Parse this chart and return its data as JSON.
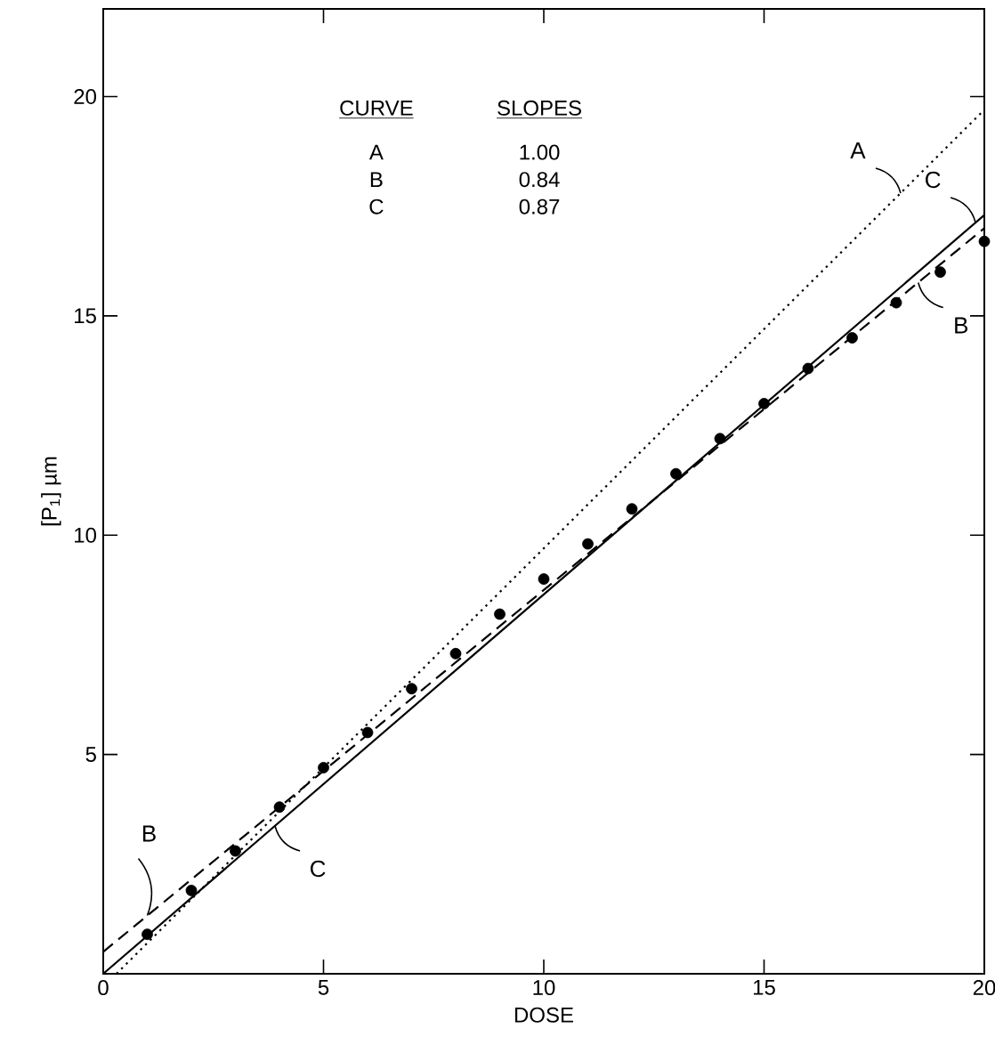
{
  "chart_data": {
    "type": "scatter",
    "xlabel": "DOSE",
    "ylabel": "[P$_{1}$] µm",
    "xlim": [
      0,
      20
    ],
    "ylim": [
      0,
      22
    ],
    "xticks": [
      0,
      5,
      10,
      15,
      20
    ],
    "yticks": [
      5,
      10,
      15,
      20
    ],
    "grid": false,
    "series": [
      {
        "color": "#000000",
        "marker": "circle",
        "x": [
          1,
          2,
          3,
          4,
          5,
          6,
          7,
          8,
          9,
          10,
          11,
          12,
          13,
          14,
          15,
          16,
          17,
          18,
          19,
          20
        ],
        "values": [
          0.9,
          1.9,
          2.8,
          3.8,
          4.7,
          5.5,
          6.5,
          7.3,
          8.2,
          9.0,
          9.8,
          10.6,
          11.4,
          12.2,
          13.0,
          13.8,
          14.5,
          15.3,
          16.0,
          16.7
        ]
      },
      {
        "type": "line",
        "color": "#000000",
        "marker": "none",
        "line_style": "dotted",
        "x": [
          0.3,
          20
        ],
        "values": [
          0,
          19.7
        ]
      },
      {
        "type": "line",
        "color": "#000000",
        "marker": "none",
        "line_style": "dashed",
        "x": [
          0,
          20
        ],
        "values": [
          0.5,
          17.0
        ]
      },
      {
        "type": "line",
        "color": "#000000",
        "marker": "none",
        "line_style": "solid",
        "x": [
          0,
          20
        ],
        "values": [
          0,
          17.3
        ]
      }
    ],
    "annotations": [
      "CURVE",
      "SLOPES",
      "A",
      "1.00",
      "B",
      "0.84",
      "C",
      "0.87",
      {
        "text": "A",
        "x": 18.1,
        "y": 17.8
      },
      {
        "text": "C",
        "x": 19.8,
        "y": 17.13
      },
      {
        "text": "B",
        "x": 18.5,
        "y": 15.76
      },
      {
        "text": "B",
        "x": 1.0,
        "y": 1.33
      },
      {
        "text": "C",
        "x": 3.9,
        "y": 3.37
      }
    ]
  }
}
